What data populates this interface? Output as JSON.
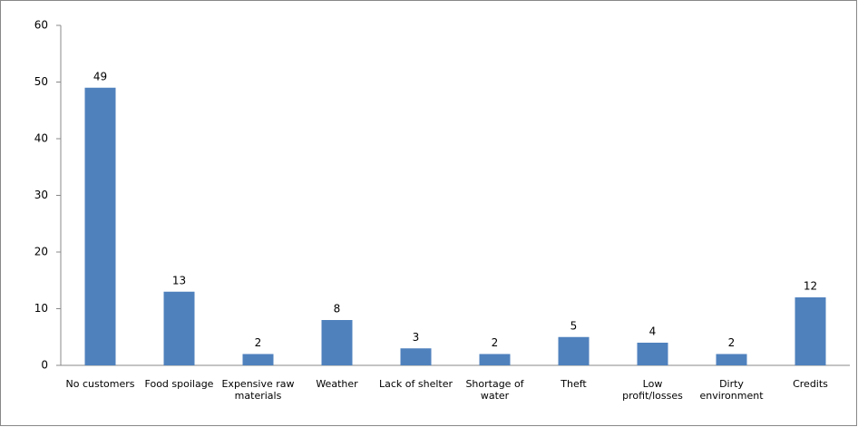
{
  "chart_data": {
    "type": "bar",
    "categories": [
      "No customers",
      "Food spoilage",
      "Expensive raw materials",
      "Weather",
      "Lack of shelter",
      "Shortage of water",
      "Theft",
      "Low profit/losses",
      "Dirty environment",
      "Credits"
    ],
    "values": [
      49,
      13,
      2,
      8,
      3,
      2,
      5,
      4,
      2,
      12
    ],
    "color": "#4f81bd",
    "ylim": [
      0,
      60
    ],
    "yticks": [
      0,
      10,
      20,
      30,
      40,
      50,
      60
    ],
    "grid": false
  }
}
